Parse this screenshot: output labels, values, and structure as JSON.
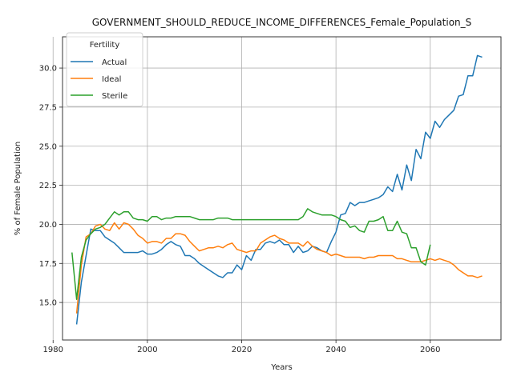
{
  "chart_data": {
    "type": "line",
    "title": "GOVERNMENT_SHOULD_REDUCE_INCOME_DIFFERENCES_Female_Population_S",
    "xlabel": "Years",
    "ylabel": "% of Female Population",
    "xlim": [
      1982,
      2075
    ],
    "ylim": [
      12.6,
      32.0
    ],
    "xticks": [
      "1980",
      "2000",
      "2020",
      "2040",
      "2060"
    ],
    "yticks": [
      "15.0",
      "17.5",
      "20.0",
      "22.5",
      "25.0",
      "27.5",
      "30.0"
    ],
    "grid": true,
    "legend_title": "Fertility",
    "legend_position": "top-left",
    "series": [
      {
        "name": "Actual",
        "color": "#1f77b4",
        "points": [
          [
            1985,
            13.6
          ],
          [
            1986,
            16.3
          ],
          [
            1987,
            18.0
          ],
          [
            1988,
            19.7
          ],
          [
            1989,
            19.6
          ],
          [
            1990,
            19.6
          ],
          [
            1991,
            19.2
          ],
          [
            1992,
            19.0
          ],
          [
            1993,
            18.8
          ],
          [
            1994,
            18.5
          ],
          [
            1995,
            18.2
          ],
          [
            1996,
            18.2
          ],
          [
            1997,
            18.2
          ],
          [
            1998,
            18.2
          ],
          [
            1999,
            18.3
          ],
          [
            2000,
            18.1
          ],
          [
            2001,
            18.1
          ],
          [
            2002,
            18.2
          ],
          [
            2003,
            18.4
          ],
          [
            2004,
            18.7
          ],
          [
            2005,
            18.9
          ],
          [
            2006,
            18.7
          ],
          [
            2007,
            18.6
          ],
          [
            2008,
            18.0
          ],
          [
            2009,
            18.0
          ],
          [
            2010,
            17.8
          ],
          [
            2011,
            17.5
          ],
          [
            2012,
            17.3
          ],
          [
            2013,
            17.1
          ],
          [
            2014,
            16.9
          ],
          [
            2015,
            16.7
          ],
          [
            2016,
            16.6
          ],
          [
            2017,
            16.9
          ],
          [
            2018,
            16.9
          ],
          [
            2019,
            17.4
          ],
          [
            2020,
            17.1
          ],
          [
            2021,
            18.0
          ],
          [
            2022,
            17.7
          ],
          [
            2023,
            18.4
          ],
          [
            2024,
            18.4
          ],
          [
            2025,
            18.8
          ],
          [
            2026,
            18.9
          ],
          [
            2027,
            18.8
          ],
          [
            2028,
            19.0
          ],
          [
            2029,
            18.7
          ],
          [
            2030,
            18.7
          ],
          [
            2031,
            18.2
          ],
          [
            2032,
            18.6
          ],
          [
            2033,
            18.2
          ],
          [
            2034,
            18.3
          ],
          [
            2035,
            18.6
          ],
          [
            2036,
            18.5
          ],
          [
            2037,
            18.3
          ],
          [
            2038,
            18.2
          ],
          [
            2039,
            18.9
          ],
          [
            2040,
            19.5
          ],
          [
            2041,
            20.6
          ],
          [
            2042,
            20.7
          ],
          [
            2043,
            21.4
          ],
          [
            2044,
            21.2
          ],
          [
            2045,
            21.4
          ],
          [
            2046,
            21.4
          ],
          [
            2047,
            21.5
          ],
          [
            2048,
            21.6
          ],
          [
            2049,
            21.7
          ],
          [
            2050,
            21.9
          ],
          [
            2051,
            22.4
          ],
          [
            2052,
            22.1
          ],
          [
            2053,
            23.2
          ],
          [
            2054,
            22.2
          ],
          [
            2055,
            23.8
          ],
          [
            2056,
            22.8
          ],
          [
            2057,
            24.8
          ],
          [
            2058,
            24.2
          ],
          [
            2059,
            25.9
          ],
          [
            2060,
            25.5
          ],
          [
            2061,
            26.6
          ],
          [
            2062,
            26.2
          ],
          [
            2063,
            26.7
          ],
          [
            2064,
            27.0
          ],
          [
            2065,
            27.3
          ],
          [
            2066,
            28.2
          ],
          [
            2067,
            28.3
          ],
          [
            2068,
            29.5
          ],
          [
            2069,
            29.5
          ],
          [
            2070,
            30.8
          ],
          [
            2071,
            30.7
          ]
        ]
      },
      {
        "name": "Ideal",
        "color": "#ff7f0e",
        "points": [
          [
            1985,
            14.3
          ],
          [
            1986,
            17.4
          ],
          [
            1987,
            19.2
          ],
          [
            1988,
            19.4
          ],
          [
            1989,
            19.9
          ],
          [
            1990,
            20.0
          ],
          [
            1991,
            19.7
          ],
          [
            1992,
            19.6
          ],
          [
            1993,
            20.1
          ],
          [
            1994,
            19.7
          ],
          [
            1995,
            20.1
          ],
          [
            1996,
            20.0
          ],
          [
            1997,
            19.7
          ],
          [
            1998,
            19.3
          ],
          [
            1999,
            19.1
          ],
          [
            2000,
            18.8
          ],
          [
            2001,
            18.9
          ],
          [
            2002,
            18.9
          ],
          [
            2003,
            18.8
          ],
          [
            2004,
            19.1
          ],
          [
            2005,
            19.1
          ],
          [
            2006,
            19.4
          ],
          [
            2007,
            19.4
          ],
          [
            2008,
            19.3
          ],
          [
            2009,
            18.9
          ],
          [
            2010,
            18.6
          ],
          [
            2011,
            18.3
          ],
          [
            2012,
            18.4
          ],
          [
            2013,
            18.5
          ],
          [
            2014,
            18.5
          ],
          [
            2015,
            18.6
          ],
          [
            2016,
            18.5
          ],
          [
            2017,
            18.7
          ],
          [
            2018,
            18.8
          ],
          [
            2019,
            18.4
          ],
          [
            2020,
            18.3
          ],
          [
            2021,
            18.2
          ],
          [
            2022,
            18.3
          ],
          [
            2023,
            18.3
          ],
          [
            2024,
            18.8
          ],
          [
            2025,
            19.0
          ],
          [
            2026,
            19.2
          ],
          [
            2027,
            19.3
          ],
          [
            2028,
            19.1
          ],
          [
            2029,
            19.0
          ],
          [
            2030,
            18.8
          ],
          [
            2031,
            18.8
          ],
          [
            2032,
            18.8
          ],
          [
            2033,
            18.6
          ],
          [
            2034,
            18.9
          ],
          [
            2035,
            18.6
          ],
          [
            2036,
            18.4
          ],
          [
            2037,
            18.3
          ],
          [
            2038,
            18.2
          ],
          [
            2039,
            18.0
          ],
          [
            2040,
            18.1
          ],
          [
            2041,
            18.0
          ],
          [
            2042,
            17.9
          ],
          [
            2043,
            17.9
          ],
          [
            2044,
            17.9
          ],
          [
            2045,
            17.9
          ],
          [
            2046,
            17.8
          ],
          [
            2047,
            17.9
          ],
          [
            2048,
            17.9
          ],
          [
            2049,
            18.0
          ],
          [
            2050,
            18.0
          ],
          [
            2051,
            18.0
          ],
          [
            2052,
            18.0
          ],
          [
            2053,
            17.8
          ],
          [
            2054,
            17.8
          ],
          [
            2055,
            17.7
          ],
          [
            2056,
            17.6
          ],
          [
            2057,
            17.6
          ],
          [
            2058,
            17.6
          ],
          [
            2059,
            17.7
          ],
          [
            2060,
            17.8
          ],
          [
            2061,
            17.7
          ],
          [
            2062,
            17.8
          ],
          [
            2063,
            17.7
          ],
          [
            2064,
            17.6
          ],
          [
            2065,
            17.4
          ],
          [
            2066,
            17.1
          ],
          [
            2067,
            16.9
          ],
          [
            2068,
            16.7
          ],
          [
            2069,
            16.7
          ],
          [
            2070,
            16.6
          ],
          [
            2071,
            16.7
          ]
        ]
      },
      {
        "name": "Sterile",
        "color": "#2ca02c",
        "points": [
          [
            1984,
            18.2
          ],
          [
            1985,
            15.2
          ],
          [
            1986,
            17.9
          ],
          [
            1987,
            19.0
          ],
          [
            1988,
            19.4
          ],
          [
            1989,
            19.7
          ],
          [
            1990,
            19.8
          ],
          [
            1991,
            20.0
          ],
          [
            1992,
            20.4
          ],
          [
            1993,
            20.8
          ],
          [
            1994,
            20.6
          ],
          [
            1995,
            20.8
          ],
          [
            1996,
            20.8
          ],
          [
            1997,
            20.4
          ],
          [
            1998,
            20.3
          ],
          [
            1999,
            20.3
          ],
          [
            2000,
            20.2
          ],
          [
            2001,
            20.5
          ],
          [
            2002,
            20.5
          ],
          [
            2003,
            20.3
          ],
          [
            2004,
            20.4
          ],
          [
            2005,
            20.4
          ],
          [
            2006,
            20.5
          ],
          [
            2007,
            20.5
          ],
          [
            2008,
            20.5
          ],
          [
            2009,
            20.5
          ],
          [
            2010,
            20.4
          ],
          [
            2011,
            20.3
          ],
          [
            2012,
            20.3
          ],
          [
            2013,
            20.3
          ],
          [
            2014,
            20.3
          ],
          [
            2015,
            20.4
          ],
          [
            2016,
            20.4
          ],
          [
            2017,
            20.4
          ],
          [
            2018,
            20.3
          ],
          [
            2019,
            20.3
          ],
          [
            2020,
            20.3
          ],
          [
            2021,
            20.3
          ],
          [
            2022,
            20.3
          ],
          [
            2023,
            20.3
          ],
          [
            2024,
            20.3
          ],
          [
            2025,
            20.3
          ],
          [
            2026,
            20.3
          ],
          [
            2027,
            20.3
          ],
          [
            2028,
            20.3
          ],
          [
            2029,
            20.3
          ],
          [
            2030,
            20.3
          ],
          [
            2031,
            20.3
          ],
          [
            2032,
            20.3
          ],
          [
            2033,
            20.5
          ],
          [
            2034,
            21.0
          ],
          [
            2035,
            20.8
          ],
          [
            2036,
            20.7
          ],
          [
            2037,
            20.6
          ],
          [
            2038,
            20.6
          ],
          [
            2039,
            20.6
          ],
          [
            2040,
            20.5
          ],
          [
            2041,
            20.3
          ],
          [
            2042,
            20.2
          ],
          [
            2043,
            19.8
          ],
          [
            2044,
            19.9
          ],
          [
            2045,
            19.6
          ],
          [
            2046,
            19.5
          ],
          [
            2047,
            20.2
          ],
          [
            2048,
            20.2
          ],
          [
            2049,
            20.3
          ],
          [
            2050,
            20.5
          ],
          [
            2051,
            19.6
          ],
          [
            2052,
            19.6
          ],
          [
            2053,
            20.2
          ],
          [
            2054,
            19.5
          ],
          [
            2055,
            19.4
          ],
          [
            2056,
            18.5
          ],
          [
            2057,
            18.5
          ],
          [
            2058,
            17.6
          ],
          [
            2059,
            17.4
          ],
          [
            2060,
            18.7
          ]
        ]
      }
    ]
  }
}
